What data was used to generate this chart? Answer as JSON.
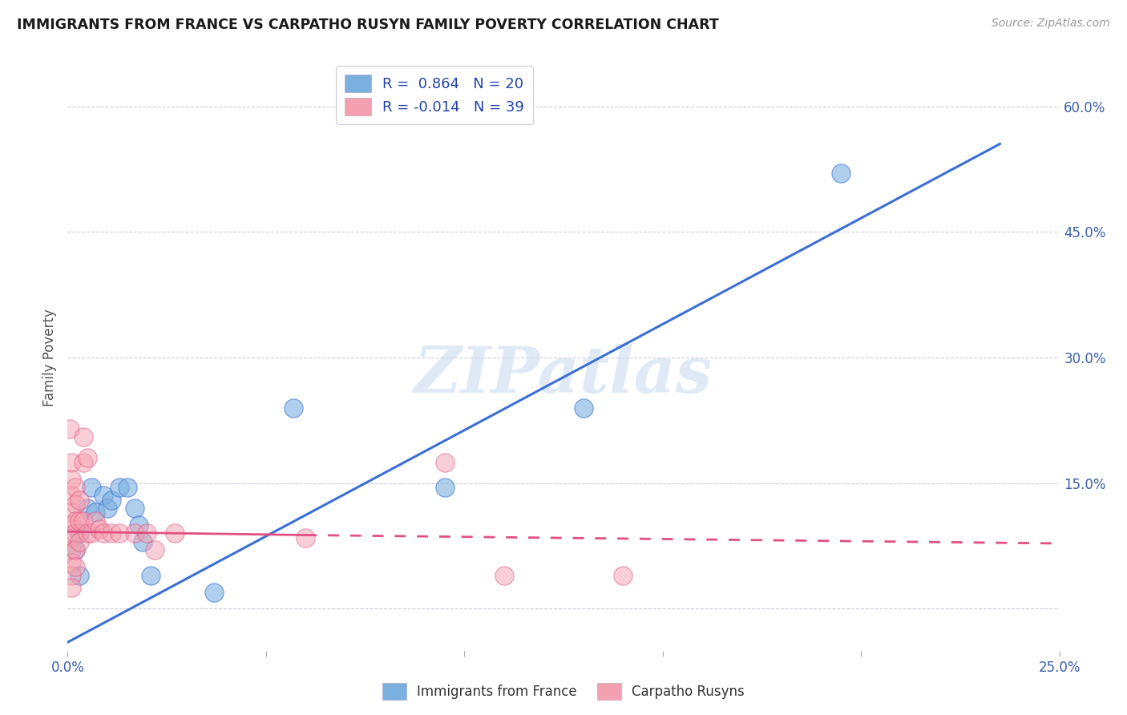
{
  "title": "IMMIGRANTS FROM FRANCE VS CARPATHO RUSYN FAMILY POVERTY CORRELATION CHART",
  "source": "Source: ZipAtlas.com",
  "xlabel_blue": "Immigrants from France",
  "xlabel_pink": "Carpatho Rusyns",
  "ylabel": "Family Poverty",
  "watermark": "ZIPatlas",
  "xlim": [
    0.0,
    0.25
  ],
  "ylim": [
    -0.05,
    0.65
  ],
  "xtick_positions": [
    0.0,
    0.05,
    0.1,
    0.15,
    0.2,
    0.25
  ],
  "xtick_labels": [
    "0.0%",
    "",
    "",
    "",
    "",
    "25.0%"
  ],
  "ytick_positions": [
    0.0,
    0.15,
    0.3,
    0.45,
    0.6
  ],
  "ytick_labels": [
    "",
    "15.0%",
    "30.0%",
    "45.0%",
    "60.0%"
  ],
  "legend_blue_R": "0.864",
  "legend_blue_N": "20",
  "legend_pink_R": "-0.014",
  "legend_pink_N": "39",
  "blue_color": "#7ab0e0",
  "pink_color": "#f4a0b0",
  "blue_line_color": "#3b6fd4",
  "pink_line_color": "#e05080",
  "blue_points": [
    [
      0.002,
      0.07
    ],
    [
      0.003,
      0.09
    ],
    [
      0.003,
      0.04
    ],
    [
      0.005,
      0.12
    ],
    [
      0.006,
      0.145
    ],
    [
      0.007,
      0.115
    ],
    [
      0.009,
      0.135
    ],
    [
      0.01,
      0.12
    ],
    [
      0.011,
      0.13
    ],
    [
      0.013,
      0.145
    ],
    [
      0.015,
      0.145
    ],
    [
      0.017,
      0.12
    ],
    [
      0.018,
      0.1
    ],
    [
      0.019,
      0.08
    ],
    [
      0.021,
      0.04
    ],
    [
      0.037,
      0.02
    ],
    [
      0.057,
      0.24
    ],
    [
      0.095,
      0.145
    ],
    [
      0.13,
      0.24
    ],
    [
      0.195,
      0.52
    ]
  ],
  "pink_points": [
    [
      0.0005,
      0.215
    ],
    [
      0.001,
      0.175
    ],
    [
      0.001,
      0.155
    ],
    [
      0.001,
      0.135
    ],
    [
      0.001,
      0.115
    ],
    [
      0.001,
      0.1
    ],
    [
      0.001,
      0.085
    ],
    [
      0.001,
      0.07
    ],
    [
      0.001,
      0.055
    ],
    [
      0.001,
      0.04
    ],
    [
      0.001,
      0.025
    ],
    [
      0.002,
      0.145
    ],
    [
      0.002,
      0.125
    ],
    [
      0.002,
      0.105
    ],
    [
      0.002,
      0.09
    ],
    [
      0.002,
      0.07
    ],
    [
      0.002,
      0.05
    ],
    [
      0.003,
      0.13
    ],
    [
      0.003,
      0.105
    ],
    [
      0.003,
      0.08
    ],
    [
      0.004,
      0.205
    ],
    [
      0.004,
      0.175
    ],
    [
      0.004,
      0.105
    ],
    [
      0.005,
      0.09
    ],
    [
      0.005,
      0.18
    ],
    [
      0.006,
      0.09
    ],
    [
      0.007,
      0.105
    ],
    [
      0.008,
      0.095
    ],
    [
      0.009,
      0.09
    ],
    [
      0.011,
      0.09
    ],
    [
      0.013,
      0.09
    ],
    [
      0.017,
      0.09
    ],
    [
      0.02,
      0.09
    ],
    [
      0.022,
      0.07
    ],
    [
      0.027,
      0.09
    ],
    [
      0.06,
      0.085
    ],
    [
      0.095,
      0.175
    ],
    [
      0.11,
      0.04
    ],
    [
      0.14,
      0.04
    ]
  ],
  "blue_trendline": [
    [
      0.0,
      -0.04
    ],
    [
      0.235,
      0.555
    ]
  ],
  "pink_trendline_solid": [
    [
      0.0,
      0.092
    ],
    [
      0.06,
      0.088
    ]
  ],
  "pink_trendline_dashed": [
    [
      0.06,
      0.088
    ],
    [
      0.25,
      0.078
    ]
  ]
}
